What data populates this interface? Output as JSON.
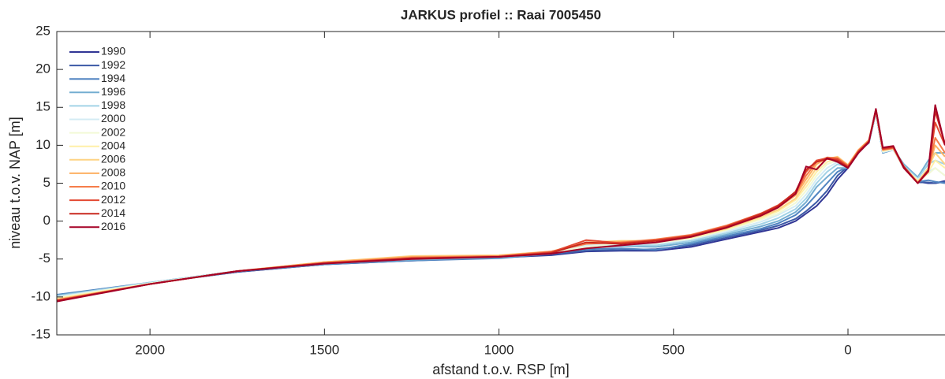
{
  "chart_data": {
    "type": "line",
    "title": "JARKUS profiel :: Raai 7005450",
    "xlabel": "afstand t.o.v. RSP [m]",
    "ylabel": "niveau t.o.v. NAP [m]",
    "xlim": [
      2267,
      -278
    ],
    "xticks": [
      2000,
      1500,
      1000,
      500,
      0
    ],
    "ylim": [
      -15,
      25
    ],
    "yticks": [
      -15,
      -10,
      -5,
      0,
      5,
      10,
      15,
      20,
      25
    ],
    "grid": false,
    "legend": "upper left",
    "x": [
      2267,
      2000,
      1750,
      1500,
      1250,
      1000,
      850,
      750,
      650,
      550,
      450,
      350,
      250,
      200,
      150,
      120,
      90,
      60,
      30,
      0,
      -30,
      -60,
      -80,
      -100,
      -130,
      -160,
      -200,
      -230,
      -250,
      -278
    ],
    "series": [
      {
        "name": "1990",
        "color": "#313695",
        "values": [
          -10.0,
          -8.2,
          -6.7,
          -5.7,
          -5.2,
          -4.8,
          -4.5,
          -4.0,
          -3.9,
          -3.9,
          -3.4,
          -2.4,
          -1.4,
          -0.9,
          0.0,
          1.0,
          2.0,
          3.5,
          5.5,
          7.0,
          9.0,
          10.5,
          14.5,
          9.0,
          9.5,
          7.0,
          5.2,
          5.0,
          5.0,
          5.3
        ]
      },
      {
        "name": "1992",
        "color": "#3c59a6",
        "values": [
          -9.9,
          -8.2,
          -6.7,
          -5.7,
          -5.1,
          -4.8,
          -4.4,
          -3.9,
          -3.8,
          -3.7,
          -3.2,
          -2.2,
          -1.2,
          -0.6,
          0.3,
          1.3,
          2.5,
          4.0,
          6.0,
          7.2,
          9.0,
          10.4,
          14.4,
          9.1,
          9.5,
          7.0,
          5.1,
          5.1,
          5.0,
          5.2
        ]
      },
      {
        "name": "1994",
        "color": "#5084c1",
        "values": [
          -9.7,
          -8.1,
          -6.6,
          -5.7,
          -5.2,
          -4.9,
          -4.3,
          -3.7,
          -3.6,
          -3.8,
          -3.0,
          -2.0,
          -1.0,
          -0.3,
          0.8,
          2.0,
          3.5,
          5.0,
          6.5,
          7.2,
          9.2,
          10.3,
          14.3,
          9.0,
          9.4,
          7.2,
          5.2,
          5.4,
          5.2,
          5.0
        ]
      },
      {
        "name": "1996",
        "color": "#74add1",
        "values": [
          -9.8,
          -8.2,
          -6.6,
          -5.6,
          -5.1,
          -4.8,
          -4.2,
          -3.5,
          -3.3,
          -3.4,
          -2.8,
          -1.8,
          -0.7,
          0.0,
          1.2,
          2.5,
          4.5,
          5.8,
          7.0,
          7.0,
          9.1,
          10.4,
          14.6,
          9.0,
          9.5,
          7.5,
          5.8,
          8.0,
          9.0,
          9.0
        ]
      },
      {
        "name": "1998",
        "color": "#a3d3e6",
        "values": [
          -9.9,
          -8.1,
          -6.6,
          -5.6,
          -5.0,
          -4.7,
          -4.3,
          -3.3,
          -3.2,
          -3.2,
          -2.6,
          -1.6,
          -0.4,
          0.4,
          1.6,
          3.0,
          5.0,
          6.5,
          7.5,
          7.1,
          9.2,
          10.5,
          14.5,
          9.2,
          9.6,
          7.3,
          5.6,
          7.5,
          8.0,
          7.5
        ]
      },
      {
        "name": "2000",
        "color": "#d4ecf4",
        "values": [
          -10.0,
          -8.2,
          -6.6,
          -5.5,
          -4.9,
          -4.6,
          -4.2,
          -3.2,
          -3.0,
          -3.0,
          -2.4,
          -1.4,
          -0.1,
          0.8,
          2.0,
          3.5,
          5.5,
          7.0,
          7.8,
          7.0,
          9.0,
          10.4,
          14.5,
          9.1,
          9.4,
          7.0,
          5.5,
          6.5,
          7.0,
          6.0
        ]
      },
      {
        "name": "2002",
        "color": "#f2f9d6",
        "values": [
          -10.1,
          -8.2,
          -6.6,
          -5.5,
          -4.8,
          -4.5,
          -4.1,
          -3.4,
          -2.9,
          -2.9,
          -2.3,
          -1.2,
          0.2,
          1.0,
          2.4,
          4.0,
          6.0,
          7.5,
          8.0,
          7.2,
          9.3,
          10.6,
          14.6,
          9.2,
          9.5,
          7.1,
          5.4,
          6.2,
          7.0,
          6.0
        ]
      },
      {
        "name": "2004",
        "color": "#fff0a8",
        "values": [
          -10.2,
          -8.3,
          -6.6,
          -5.4,
          -4.7,
          -4.5,
          -4.0,
          -3.0,
          -2.8,
          -2.7,
          -2.2,
          -1.1,
          0.4,
          1.3,
          2.8,
          4.5,
          6.5,
          7.8,
          8.2,
          7.3,
          9.3,
          10.5,
          14.5,
          9.3,
          9.6,
          7.0,
          5.3,
          6.5,
          8.0,
          7.0
        ]
      },
      {
        "name": "2006",
        "color": "#fed384",
        "values": [
          -10.3,
          -8.3,
          -6.6,
          -5.4,
          -4.6,
          -4.5,
          -4.0,
          -2.8,
          -2.6,
          -2.6,
          -2.0,
          -1.0,
          0.6,
          1.5,
          3.0,
          5.0,
          7.0,
          8.2,
          8.5,
          7.4,
          9.4,
          10.6,
          14.6,
          9.4,
          9.7,
          7.2,
          5.2,
          7.0,
          9.0,
          7.5
        ]
      },
      {
        "name": "2008",
        "color": "#fdb163",
        "values": [
          -10.4,
          -8.3,
          -6.6,
          -5.4,
          -4.7,
          -4.6,
          -4.1,
          -2.9,
          -2.7,
          -2.5,
          -1.9,
          -0.8,
          0.8,
          1.8,
          3.4,
          5.5,
          7.5,
          8.3,
          8.4,
          7.4,
          9.4,
          10.7,
          14.7,
          9.5,
          9.7,
          7.1,
          5.1,
          6.8,
          10.0,
          8.5
        ]
      },
      {
        "name": "2010",
        "color": "#f67d4a",
        "values": [
          -10.4,
          -8.3,
          -6.6,
          -5.5,
          -4.8,
          -4.6,
          -4.0,
          -3.0,
          -2.8,
          -2.4,
          -1.8,
          -0.6,
          1.0,
          2.0,
          3.6,
          6.0,
          7.8,
          8.4,
          8.3,
          7.3,
          9.3,
          10.6,
          14.6,
          9.4,
          9.6,
          7.0,
          5.0,
          6.5,
          11.0,
          9.0
        ]
      },
      {
        "name": "2012",
        "color": "#e34a33",
        "values": [
          -10.5,
          -8.3,
          -6.6,
          -5.5,
          -4.9,
          -4.7,
          -4.1,
          -2.5,
          -2.9,
          -2.5,
          -1.9,
          -0.7,
          1.0,
          2.1,
          3.8,
          6.5,
          8.0,
          8.3,
          8.2,
          7.2,
          9.2,
          10.5,
          14.6,
          9.5,
          9.7,
          7.1,
          5.0,
          6.5,
          13.0,
          10.0
        ]
      },
      {
        "name": "2014",
        "color": "#c8281f",
        "values": [
          -10.5,
          -8.3,
          -6.6,
          -5.6,
          -4.9,
          -4.7,
          -4.2,
          -2.8,
          -3.0,
          -2.6,
          -2.0,
          -0.8,
          0.9,
          2.0,
          3.9,
          6.8,
          7.8,
          8.2,
          8.0,
          7.1,
          9.1,
          10.5,
          14.7,
          9.6,
          9.8,
          7.2,
          5.0,
          6.6,
          14.5,
          10.2
        ]
      },
      {
        "name": "2016",
        "color": "#a50026",
        "values": [
          -10.6,
          -8.3,
          -6.6,
          -5.6,
          -5.0,
          -4.7,
          -4.3,
          -3.6,
          -3.2,
          -2.8,
          -2.1,
          -0.9,
          0.7,
          1.8,
          3.6,
          7.2,
          6.8,
          8.3,
          7.8,
          7.0,
          9.0,
          10.4,
          14.8,
          9.7,
          9.9,
          7.0,
          5.0,
          6.7,
          15.3,
          10.0
        ]
      }
    ]
  }
}
